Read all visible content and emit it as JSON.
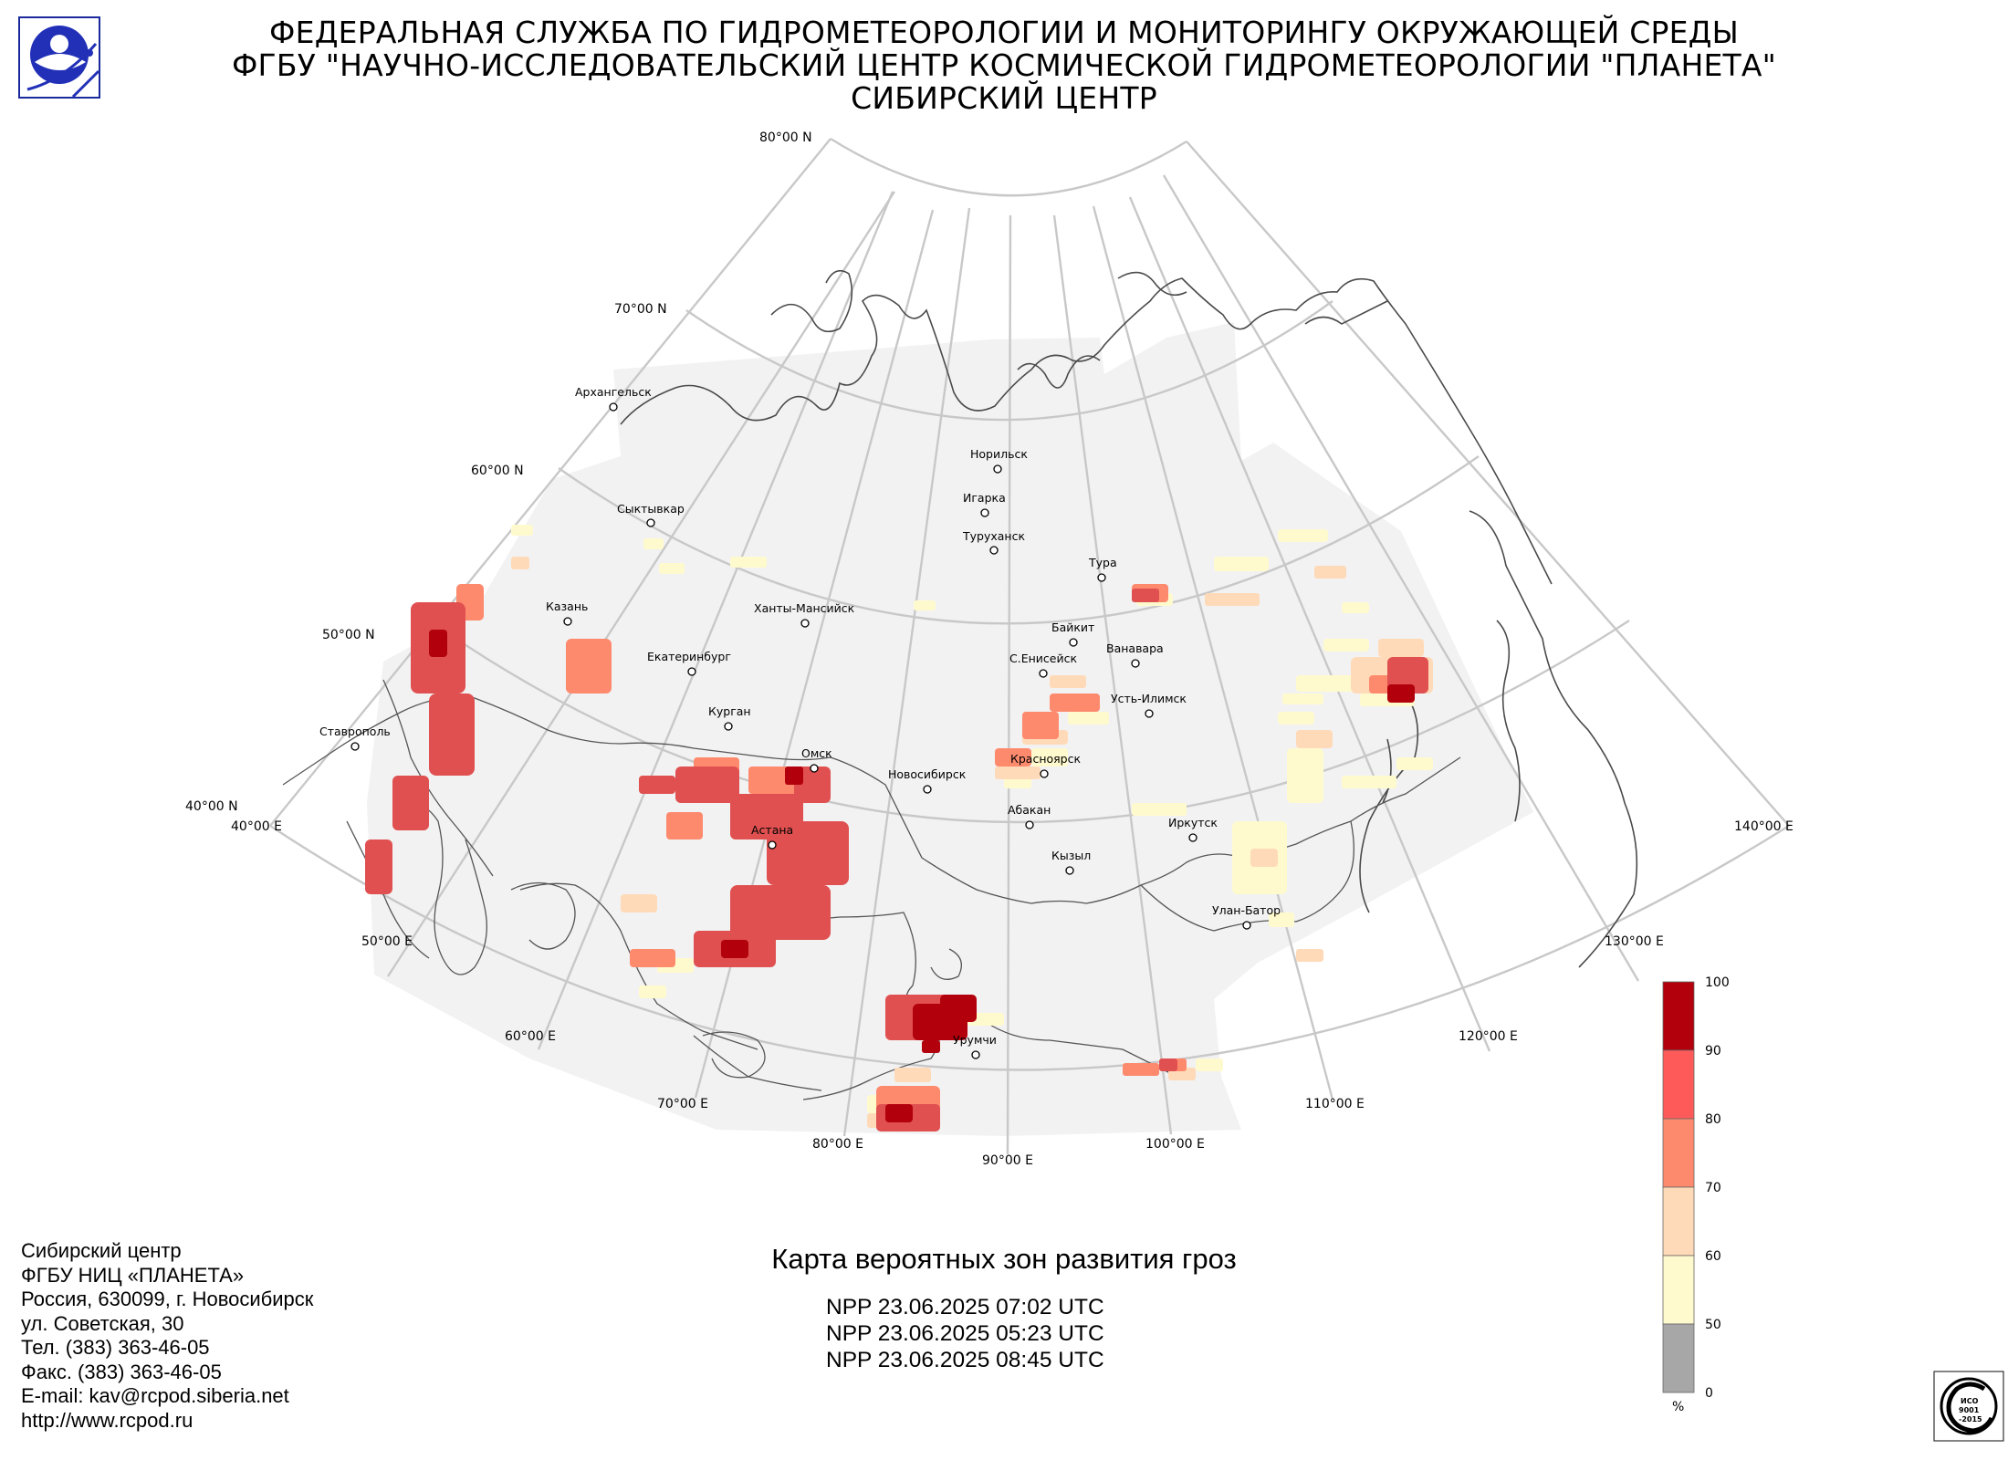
{
  "header": {
    "line1": "ФЕДЕРАЛЬНАЯ СЛУЖБА ПО ГИДРОМЕТЕОРОЛОГИИ И МОНИТОРИНГУ ОКРУЖАЮЩЕЙ СРЕДЫ",
    "line2": "ФГБУ \"НАУЧНО-ИССЛЕДОВАТЕЛЬСКИЙ ЦЕНТР КОСМИЧЕСКОЙ ГИДРОМЕТЕОРОЛОГИИ \"ПЛАНЕТА\"",
    "line3": "СИБИРСКИЙ ЦЕНТР"
  },
  "map": {
    "parallels": [
      "80°00 N",
      "70°00 N",
      "60°00 N",
      "50°00 N",
      "40°00 N"
    ],
    "meridians": [
      "40°00 E",
      "50°00 E",
      "60°00 E",
      "70°00 E",
      "80°00 E",
      "90°00 E",
      "100°00 E",
      "110°00 E",
      "120°00 E",
      "130°00 E",
      "140°00 E"
    ],
    "cities": [
      "Архангельск",
      "Сыктывкар",
      "Казань",
      "Екатеринбург",
      "Ханты-Мансийск",
      "Курган",
      "Ставрополь",
      "Омск",
      "Астана",
      "Новосибирск",
      "Норильск",
      "Игарка",
      "Туруханск",
      "Тура",
      "Байкит",
      "Ванавара",
      "С.Енисейск",
      "Усть-Илимск",
      "Красноярск",
      "Абакан",
      "Кызыл",
      "Иркутск",
      "Улан-Батор",
      "Урумчи"
    ]
  },
  "contacts": [
    "Сибирский центр",
    "ФГБУ НИЦ «ПЛАНЕТА»",
    "Россия, 630099, г. Новосибирск",
    "ул. Советская, 30",
    "Тел. (383) 363-46-05",
    "Факс. (383) 363-46-05",
    "E-mail: kav@rcpod.siberia.net",
    "http://www.rcpod.ru"
  ],
  "map_title": "Карта вероятных зон развития гроз",
  "passes": [
    "NPP 23.06.2025  07:02 UTC",
    "NPP 23.06.2025  05:23 UTC",
    "NPP 23.06.2025  08:45 UTC"
  ],
  "legend": {
    "ticks": [
      "100",
      "90",
      "80",
      "70",
      "60",
      "50",
      "0"
    ],
    "unit": "%",
    "colors": [
      "#b2000c",
      "#ff5a5a",
      "#fe8a6e",
      "#ffdab8",
      "#fffacd",
      "#a7a7a7"
    ]
  },
  "cert": {
    "text1": "ИСО",
    "text2": "9001",
    "text3": "-2015"
  }
}
